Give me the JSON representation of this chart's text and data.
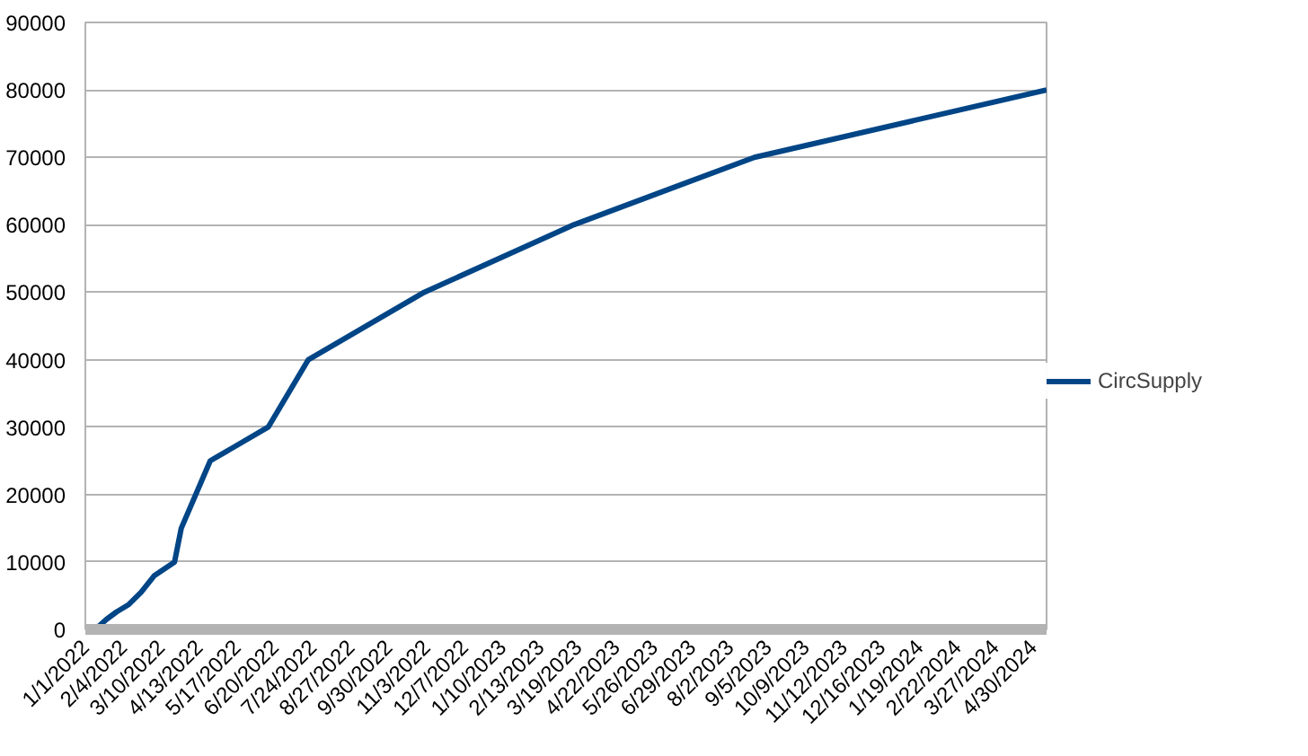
{
  "chart_data": {
    "type": "line",
    "x": [
      "2022-01-01",
      "2022-01-12",
      "2022-01-20",
      "2022-01-29",
      "2022-02-09",
      "2022-02-20",
      "2022-03-04",
      "2022-03-22",
      "2022-03-28",
      "2022-04-23",
      "2022-06-14",
      "2022-07-20",
      "2022-11-01",
      "2023-03-15",
      "2023-08-24",
      "2024-05-12"
    ],
    "series": [
      {
        "name": "CircSupply",
        "color": "#004586",
        "values": [
          0,
          300,
          1500,
          2600,
          3700,
          5500,
          8000,
          10000,
          15000,
          25000,
          30000,
          40000,
          50000,
          60000,
          70000,
          80000
        ]
      }
    ],
    "xlim": [
      "2022-01-01",
      "2024-05-12"
    ],
    "xticks": [
      {
        "value": "2022-01-01",
        "label": "1/1/2022"
      },
      {
        "value": "2022-02-04",
        "label": "2/4/2022"
      },
      {
        "value": "2022-03-10",
        "label": "3/10/2022"
      },
      {
        "value": "2022-04-13",
        "label": "4/13/2022"
      },
      {
        "value": "2022-05-17",
        "label": "5/17/2022"
      },
      {
        "value": "2022-06-20",
        "label": "6/20/2022"
      },
      {
        "value": "2022-07-24",
        "label": "7/24/2022"
      },
      {
        "value": "2022-08-27",
        "label": "8/27/2022"
      },
      {
        "value": "2022-09-30",
        "label": "9/30/2022"
      },
      {
        "value": "2022-11-03",
        "label": "11/3/2022"
      },
      {
        "value": "2022-12-07",
        "label": "12/7/2022"
      },
      {
        "value": "2023-01-10",
        "label": "1/10/2023"
      },
      {
        "value": "2023-02-13",
        "label": "2/13/2023"
      },
      {
        "value": "2023-03-19",
        "label": "3/19/2023"
      },
      {
        "value": "2023-04-22",
        "label": "4/22/2023"
      },
      {
        "value": "2023-05-26",
        "label": "5/26/2023"
      },
      {
        "value": "2023-06-29",
        "label": "6/29/2023"
      },
      {
        "value": "2023-08-02",
        "label": "8/2/2023"
      },
      {
        "value": "2023-09-05",
        "label": "9/5/2023"
      },
      {
        "value": "2023-10-09",
        "label": "10/9/2023"
      },
      {
        "value": "2023-11-12",
        "label": "11/12/2023"
      },
      {
        "value": "2023-12-16",
        "label": "12/16/2023"
      },
      {
        "value": "2024-01-19",
        "label": "1/19/2024"
      },
      {
        "value": "2024-02-22",
        "label": "2/22/2024"
      },
      {
        "value": "2024-03-27",
        "label": "3/27/2024"
      },
      {
        "value": "2024-04-30",
        "label": "4/30/2024"
      }
    ],
    "ylim": [
      0,
      90000
    ],
    "yticks": [
      0,
      10000,
      20000,
      30000,
      40000,
      50000,
      60000,
      70000,
      80000,
      90000
    ],
    "grid": "y",
    "legend": "right",
    "marker": "none",
    "line_style": "solid"
  }
}
